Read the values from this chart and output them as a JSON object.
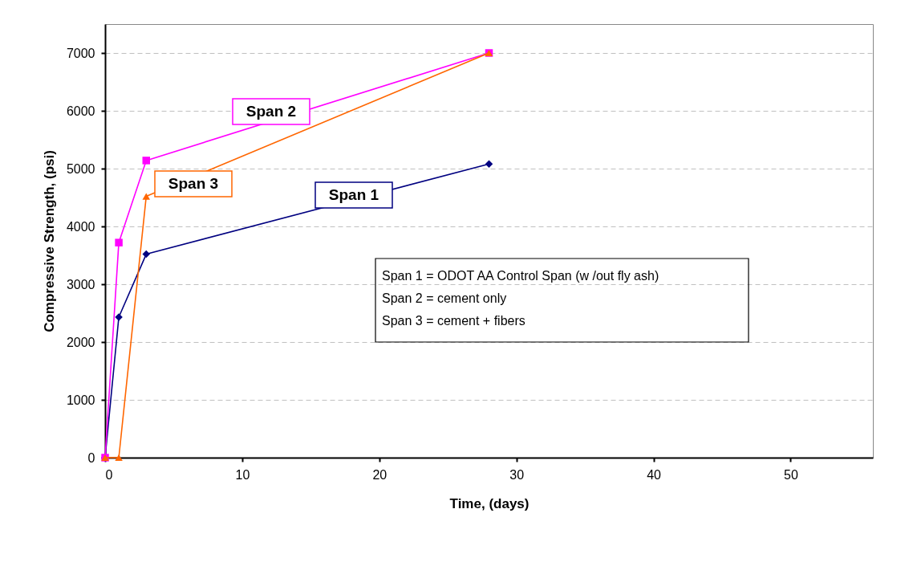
{
  "chart_data": {
    "type": "line",
    "xlabel": "Time, (days)",
    "ylabel": "Compressive Strength, (psi)",
    "xlim": [
      0,
      56
    ],
    "xticks": [
      0,
      10,
      20,
      30,
      40,
      50
    ],
    "ylim": [
      0,
      7500
    ],
    "yticks": [
      0,
      1000,
      2000,
      3000,
      4000,
      5000,
      6000,
      7000
    ],
    "grid": "y",
    "series": [
      {
        "name": "Span 1",
        "color": "#000080",
        "marker": "diamond",
        "x": [
          0,
          1,
          3,
          28
        ],
        "values": [
          0,
          2430,
          3520,
          5080
        ]
      },
      {
        "name": "Span 2",
        "color": "#ff00ff",
        "marker": "square",
        "x": [
          0,
          1,
          3,
          28
        ],
        "values": [
          0,
          3720,
          5140,
          7000
        ]
      },
      {
        "name": "Span 3",
        "color": "#ff6600",
        "marker": "triangle",
        "x": [
          0,
          1,
          3,
          28
        ],
        "values": [
          0,
          0,
          4520,
          7000
        ]
      }
    ],
    "annotations": [
      "Span 1 = ODOT AA Control Span (w /out fly ash)",
      "Span 2 = cement only",
      "Span 3 = cement + fibers"
    ]
  }
}
